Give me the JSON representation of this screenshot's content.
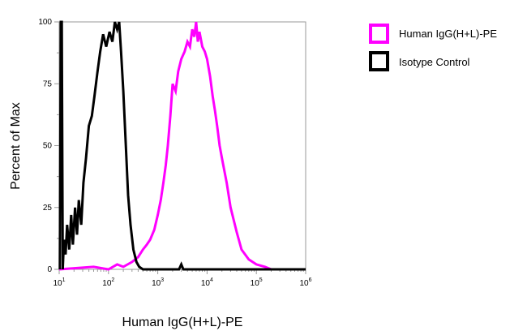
{
  "chart_data": {
    "type": "line",
    "xlabel": "Human IgG(H+L)-PE",
    "ylabel": "Percent of Max",
    "xscale": "log",
    "xlim": [
      10,
      1000000
    ],
    "ylim": [
      0,
      100
    ],
    "yticks": [
      "0",
      "25",
      "50",
      "75",
      "100"
    ],
    "xticks": [
      {
        "base": "10",
        "exp": "1"
      },
      {
        "base": "10",
        "exp": "2"
      },
      {
        "base": "10",
        "exp": "3"
      },
      {
        "base": "10",
        "exp": "4"
      },
      {
        "base": "10",
        "exp": "5"
      },
      {
        "base": "10",
        "exp": "6"
      }
    ],
    "legend_placement": "right",
    "series": [
      {
        "name": "Human IgG(H+L)-PE",
        "color": "#ff00ff",
        "points": [
          [
            10,
            0
          ],
          [
            50,
            1
          ],
          [
            100,
            0
          ],
          [
            150,
            2
          ],
          [
            200,
            1
          ],
          [
            300,
            3
          ],
          [
            400,
            5
          ],
          [
            500,
            8
          ],
          [
            600,
            10
          ],
          [
            700,
            12
          ],
          [
            850,
            16
          ],
          [
            1000,
            22
          ],
          [
            1150,
            28
          ],
          [
            1300,
            35
          ],
          [
            1450,
            42
          ],
          [
            1600,
            50
          ],
          [
            1800,
            62
          ],
          [
            2000,
            75
          ],
          [
            2300,
            72
          ],
          [
            2600,
            80
          ],
          [
            3000,
            85
          ],
          [
            3500,
            88
          ],
          [
            4000,
            92
          ],
          [
            4500,
            90
          ],
          [
            5000,
            97
          ],
          [
            5500,
            94
          ],
          [
            6000,
            100
          ],
          [
            6500,
            92
          ],
          [
            7000,
            96
          ],
          [
            8000,
            90
          ],
          [
            9000,
            88
          ],
          [
            10000,
            85
          ],
          [
            11500,
            78
          ],
          [
            13000,
            70
          ],
          [
            14500,
            64
          ],
          [
            16000,
            58
          ],
          [
            18000,
            50
          ],
          [
            20000,
            45
          ],
          [
            25000,
            35
          ],
          [
            30000,
            25
          ],
          [
            40000,
            15
          ],
          [
            50000,
            8
          ],
          [
            70000,
            4
          ],
          [
            100000,
            2
          ],
          [
            150000,
            1
          ],
          [
            200000,
            0
          ],
          [
            1000000,
            0
          ]
        ]
      },
      {
        "name": "Isotype Control",
        "color": "#000000",
        "points": [
          [
            10.3,
            0
          ],
          [
            10.8,
            100
          ],
          [
            11.3,
            100
          ],
          [
            11.8,
            0
          ],
          [
            12.5,
            12
          ],
          [
            13.5,
            6
          ],
          [
            14.5,
            18
          ],
          [
            16,
            8
          ],
          [
            17.5,
            22
          ],
          [
            19,
            10
          ],
          [
            21,
            25
          ],
          [
            23,
            14
          ],
          [
            25,
            28
          ],
          [
            28,
            18
          ],
          [
            31,
            35
          ],
          [
            35,
            45
          ],
          [
            40,
            58
          ],
          [
            46,
            62
          ],
          [
            52,
            70
          ],
          [
            60,
            80
          ],
          [
            68,
            88
          ],
          [
            78,
            95
          ],
          [
            90,
            90
          ],
          [
            105,
            96
          ],
          [
            120,
            92
          ],
          [
            135,
            100
          ],
          [
            150,
            97
          ],
          [
            165,
            100
          ],
          [
            180,
            88
          ],
          [
            200,
            72
          ],
          [
            225,
            50
          ],
          [
            250,
            30
          ],
          [
            280,
            18
          ],
          [
            320,
            8
          ],
          [
            370,
            3
          ],
          [
            420,
            1
          ],
          [
            500,
            0
          ],
          [
            1000,
            0
          ],
          [
            2700,
            0
          ],
          [
            3000,
            2
          ],
          [
            3300,
            0
          ],
          [
            1000000,
            0
          ]
        ]
      }
    ]
  }
}
